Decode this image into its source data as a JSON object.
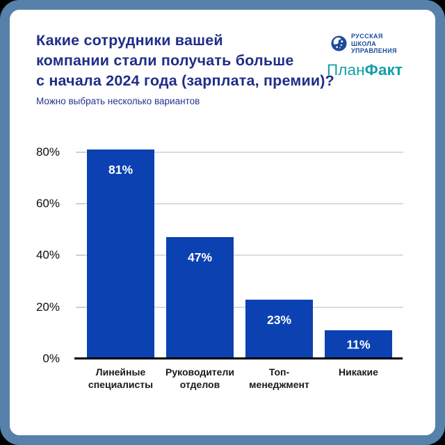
{
  "theme": {
    "frame_color": "#5581ab",
    "card_color": "#ffffff",
    "outside_color": "#000000",
    "title_color": "#1f2d87"
  },
  "header": {
    "title_lines": [
      "Какие сотрудники вашей",
      "компании стали получать больше",
      "с начала 2024 года (зарплата, премии)?"
    ],
    "subtitle": "Можно выбрать несколько вариантов"
  },
  "logos": {
    "rsu": {
      "lines": [
        "РУССКАЯ",
        "ШКОЛА",
        "УПРАВЛЕНИЯ"
      ],
      "color": "#1b4a9b"
    },
    "planfact": {
      "part1": "План",
      "part2": "Факт",
      "color": "#149eaa"
    }
  },
  "chart_data": {
    "type": "bar",
    "title": "Какие сотрудники вашей компании стали получать больше с начала 2024 года (зарплата, премии)?",
    "subtitle": "Можно выбрать несколько вариантов",
    "categories": [
      "Линейные специалисты",
      "Руководители отделов",
      "Топ-менеджмент",
      "Никакие"
    ],
    "category_lines": [
      [
        "Линейные",
        "специалисты"
      ],
      [
        "Руководители",
        "отделов"
      ],
      [
        "Топ-",
        "менеджмент"
      ],
      [
        "Никакие"
      ]
    ],
    "values": [
      81,
      47,
      23,
      11
    ],
    "labels": [
      "81%",
      "47%",
      "23%",
      "11%"
    ],
    "yticks": [
      0,
      20,
      40,
      60,
      80
    ],
    "ytick_labels": [
      "0%",
      "20%",
      "40%",
      "60%",
      "80%"
    ],
    "ylim": [
      0,
      85
    ],
    "xlabel": "",
    "ylabel": "",
    "grid": true,
    "legend": "none",
    "bar_color": "#0c41b2",
    "value_label_color": "#ffffff",
    "gridline_color": "#dcdcdc",
    "axis_line_color": "#000000"
  }
}
